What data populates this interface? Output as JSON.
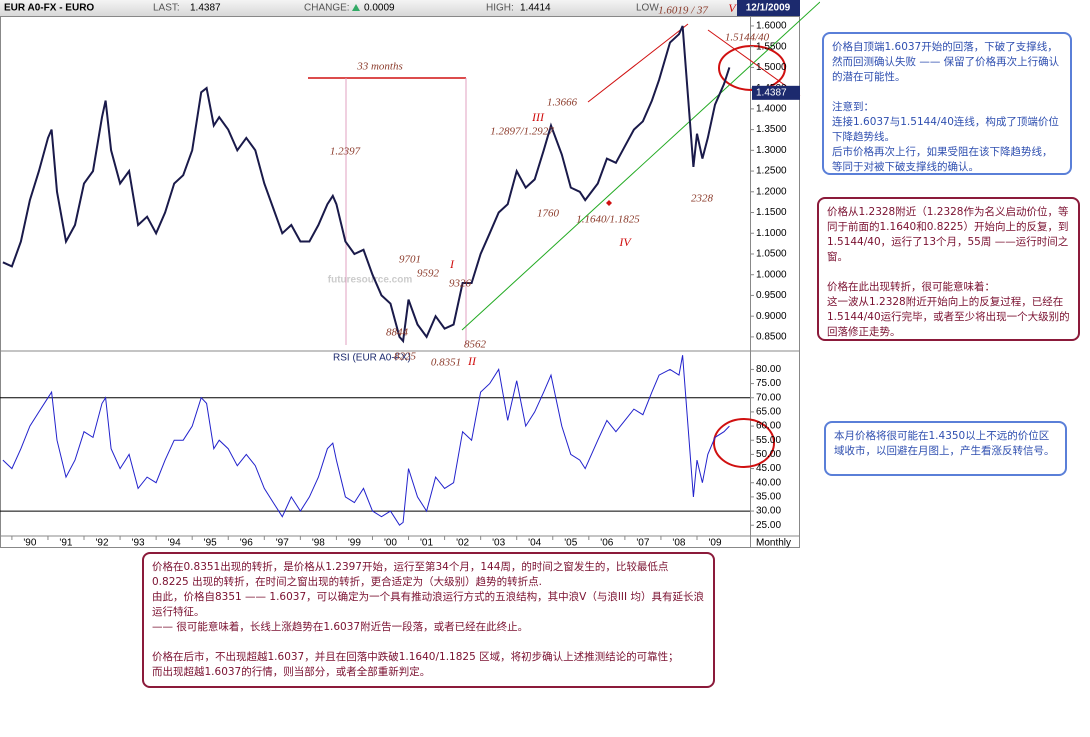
{
  "header": {
    "symbol": "EUR A0-FX - EURO",
    "last_label": "LAST:",
    "last": "1.4387",
    "change_label": "CHANGE:",
    "change": "0.0009",
    "high_label": "HIGH:",
    "high": "1.4414",
    "low_label": "LOW",
    "date": "12/1/2009"
  },
  "chart_data": [
    {
      "type": "line",
      "color": "#1a1a4a",
      "watermark": "futuresource.com",
      "x_label": "Monthly",
      "x": [
        1989.75,
        1990.0,
        1990.25,
        1990.5,
        1990.75,
        1991.0,
        1991.1,
        1991.25,
        1991.5,
        1991.75,
        1992.0,
        1992.25,
        1992.5,
        1992.6,
        1992.75,
        1993.0,
        1993.25,
        1993.5,
        1993.75,
        1994.0,
        1994.25,
        1994.5,
        1994.75,
        1995.0,
        1995.25,
        1995.4,
        1995.6,
        1995.75,
        1996.0,
        1996.25,
        1996.5,
        1996.75,
        1997.0,
        1997.25,
        1997.5,
        1997.75,
        1998.0,
        1998.25,
        1998.5,
        1998.75,
        1998.9,
        1999.0,
        1999.25,
        1999.5,
        1999.75,
        2000.0,
        2000.25,
        2000.5,
        2000.75,
        2000.85,
        2001.0,
        2001.25,
        2001.5,
        2001.75,
        2002.0,
        2002.25,
        2002.5,
        2002.75,
        2003.0,
        2003.25,
        2003.5,
        2003.75,
        2004.0,
        2004.25,
        2004.5,
        2004.75,
        2004.95,
        2005.25,
        2005.5,
        2005.75,
        2005.9,
        2006.25,
        2006.5,
        2006.75,
        2007.0,
        2007.25,
        2007.5,
        2007.75,
        2007.95,
        2008.25,
        2008.5,
        2008.6,
        2008.75,
        2008.9,
        2009.0,
        2009.15,
        2009.3,
        2009.5,
        2009.75,
        2009.9
      ],
      "values": [
        1.03,
        1.02,
        1.08,
        1.18,
        1.25,
        1.33,
        1.35,
        1.2,
        1.08,
        1.12,
        1.22,
        1.25,
        1.38,
        1.42,
        1.3,
        1.22,
        1.25,
        1.12,
        1.14,
        1.1,
        1.15,
        1.22,
        1.24,
        1.3,
        1.44,
        1.45,
        1.36,
        1.38,
        1.35,
        1.3,
        1.33,
        1.3,
        1.22,
        1.16,
        1.1,
        1.12,
        1.08,
        1.08,
        1.12,
        1.17,
        1.19,
        1.17,
        1.08,
        1.05,
        1.06,
        1.0,
        0.95,
        0.93,
        0.85,
        0.84,
        0.94,
        0.88,
        0.85,
        0.9,
        0.87,
        0.88,
        0.98,
        0.98,
        1.05,
        1.1,
        1.15,
        1.17,
        1.25,
        1.21,
        1.23,
        1.3,
        1.36,
        1.29,
        1.21,
        1.2,
        1.18,
        1.22,
        1.28,
        1.27,
        1.31,
        1.35,
        1.37,
        1.42,
        1.47,
        1.56,
        1.58,
        1.6,
        1.43,
        1.26,
        1.34,
        1.28,
        1.33,
        1.41,
        1.46,
        1.5
      ],
      "last_marker": 1.4387,
      "xlim": [
        1989.67,
        2010.47
      ],
      "ylim": [
        0.816,
        1.624
      ],
      "xticks": [
        {
          "value": 1990,
          "label": "'90"
        },
        {
          "value": 1991,
          "label": "'91"
        },
        {
          "value": 1992,
          "label": "'92"
        },
        {
          "value": 1993,
          "label": "'93"
        },
        {
          "value": 1994,
          "label": "'94"
        },
        {
          "value": 1995,
          "label": "'95"
        },
        {
          "value": 1996,
          "label": "'96"
        },
        {
          "value": 1997,
          "label": "'97"
        },
        {
          "value": 1998,
          "label": "'98"
        },
        {
          "value": 1999,
          "label": "'99"
        },
        {
          "value": 2000,
          "label": "'00"
        },
        {
          "value": 2001,
          "label": "'01"
        },
        {
          "value": 2002,
          "label": "'02"
        },
        {
          "value": 2003,
          "label": "'03"
        },
        {
          "value": 2004,
          "label": "'04"
        },
        {
          "value": 2005,
          "label": "'05"
        },
        {
          "value": 2006,
          "label": "'06"
        },
        {
          "value": 2007,
          "label": "'07"
        },
        {
          "value": 2008,
          "label": "'08"
        },
        {
          "value": 2009,
          "label": "'09"
        }
      ],
      "yticks": [
        {
          "value": 0.85,
          "label": "0.8500"
        },
        {
          "value": 0.9,
          "label": "0.9000"
        },
        {
          "value": 0.95,
          "label": "0.9500"
        },
        {
          "value": 1.0,
          "label": "1.0000"
        },
        {
          "value": 1.05,
          "label": "1.0500"
        },
        {
          "value": 1.1,
          "label": "1.1000"
        },
        {
          "value": 1.15,
          "label": "1.1500"
        },
        {
          "value": 1.2,
          "label": "1.2000"
        },
        {
          "value": 1.25,
          "label": "1.2500"
        },
        {
          "value": 1.3,
          "label": "1.3000"
        },
        {
          "value": 1.35,
          "label": "1.3500"
        },
        {
          "value": 1.4,
          "label": "1.4000"
        },
        {
          "value": 1.45,
          "label": "1.4500"
        },
        {
          "value": 1.5,
          "label": "1.5000"
        },
        {
          "value": 1.55,
          "label": "1.5500"
        },
        {
          "value": 1.6,
          "label": "1.6000"
        }
      ],
      "annotations": [
        "33 months",
        "1.2397",
        "9701",
        "9592",
        "9326",
        "I",
        "8844",
        "8562",
        "0.8351",
        "8225",
        "II",
        "III",
        "1.3666",
        "1.2897/1.2927",
        "1760",
        "1.1640/1.1825",
        "IV",
        "2328",
        "1.6019 / 37",
        "V",
        "1.5144/40"
      ]
    },
    {
      "type": "line",
      "title": "RSI (EUR A0-FX)",
      "color": "#2222cc",
      "x": [
        1989.75,
        1990.0,
        1990.25,
        1990.5,
        1990.75,
        1991.0,
        1991.1,
        1991.25,
        1991.5,
        1991.75,
        1992.0,
        1992.25,
        1992.5,
        1992.6,
        1992.75,
        1993.0,
        1993.25,
        1993.5,
        1993.75,
        1994.0,
        1994.25,
        1994.5,
        1994.75,
        1995.0,
        1995.25,
        1995.4,
        1995.6,
        1995.75,
        1996.0,
        1996.25,
        1996.5,
        1996.75,
        1997.0,
        1997.25,
        1997.5,
        1997.75,
        1998.0,
        1998.25,
        1998.5,
        1998.75,
        1998.9,
        1999.0,
        1999.25,
        1999.5,
        1999.75,
        2000.0,
        2000.25,
        2000.5,
        2000.75,
        2000.85,
        2001.0,
        2001.25,
        2001.5,
        2001.75,
        2002.0,
        2002.25,
        2002.5,
        2002.75,
        2003.0,
        2003.25,
        2003.5,
        2003.75,
        2004.0,
        2004.25,
        2004.5,
        2004.75,
        2004.95,
        2005.25,
        2005.5,
        2005.75,
        2005.9,
        2006.25,
        2006.5,
        2006.75,
        2007.0,
        2007.25,
        2007.5,
        2007.75,
        2007.95,
        2008.25,
        2008.5,
        2008.6,
        2008.75,
        2008.9,
        2009.0,
        2009.15,
        2009.3,
        2009.5,
        2009.75,
        2009.9
      ],
      "values": [
        48,
        45,
        52,
        60,
        65,
        70,
        72,
        55,
        42,
        48,
        58,
        56,
        68,
        70,
        52,
        45,
        50,
        38,
        42,
        40,
        48,
        55,
        55,
        60,
        70,
        68,
        52,
        55,
        52,
        46,
        50,
        46,
        38,
        33,
        28,
        35,
        30,
        35,
        42,
        52,
        54,
        48,
        35,
        33,
        38,
        30,
        28,
        30,
        25,
        26,
        45,
        35,
        30,
        42,
        38,
        40,
        58,
        55,
        72,
        75,
        80,
        62,
        76,
        60,
        65,
        72,
        78,
        60,
        50,
        48,
        45,
        55,
        62,
        58,
        62,
        66,
        64,
        72,
        78,
        80,
        78,
        85,
        60,
        35,
        48,
        40,
        50,
        56,
        58,
        60
      ],
      "xlim": [
        1989.67,
        2010.47
      ],
      "ylim": [
        21.2,
        86.5
      ],
      "yticks": [
        {
          "value": 25,
          "label": "25.00"
        },
        {
          "value": 30,
          "label": "30.00"
        },
        {
          "value": 35,
          "label": "35.00"
        },
        {
          "value": 40,
          "label": "40.00"
        },
        {
          "value": 45,
          "label": "45.00"
        },
        {
          "value": 50,
          "label": "50.00"
        },
        {
          "value": 55,
          "label": "55.00"
        },
        {
          "value": 60,
          "label": "60.00"
        },
        {
          "value": 65,
          "label": "65.00"
        },
        {
          "value": 70,
          "label": "70.00"
        },
        {
          "value": 75,
          "label": "75.00"
        },
        {
          "value": 80,
          "label": "80.00"
        }
      ],
      "reference_lines": [
        70,
        30
      ]
    }
  ],
  "notes": [
    {
      "style": "blue",
      "paragraphs": [
        [
          "价格自顶端1.6037开始的回落，下破了支撑线，然而回测确认失败 —— 保留了价格再次上行确认的潜在可能性。"
        ],
        [
          "注意到：",
          "连接1.6037与1.5144/40连线，构成了顶端价位下降趋势线。",
          "后市价格再次上行，如果受阻在该下降趋势线，等同于对被下破支撑线的确认。"
        ]
      ]
    },
    {
      "style": "maroon",
      "paragraphs": [
        [
          "价格从1.2328附近（1.2328作为名义启动价位，等同于前面的1.1640和0.8225）开始向上的反复，到1.5144/40，运行了13个月，55周 ——运行时间之窗。"
        ],
        [
          "价格在此出现转折，很可能意味着：",
          "这一波从1.2328附近开始向上的反复过程，已经在1.5144/40运行完毕，或者至少将出现一个大级别的回落修正走势。"
        ]
      ]
    },
    {
      "style": "blue",
      "paragraphs": [
        [
          "本月价格将很可能在1.4350以上不远的价位区域收市，以回避在月图上，产生看涨反转信号。"
        ]
      ]
    },
    {
      "style": "maroon",
      "paragraphs": [
        [
          "价格在0.8351出现的转折，是价格从1.2397开始，运行至第34个月，144周，的时间之窗发生的，比较最低点0.8225 出现的转折，在时间之窗出现的转折，更合适定为（大级别）趋势的转折点.",
          "由此，价格自8351 —— 1.6037，可以确定为一个具有推动浪运行方式的五浪结构，其中浪V（与浪III 均）具有延长浪运行特征。",
          "—— 很可能意味着，长线上涨趋势在1.6037附近告一段落，或者已经在此终止。"
        ],
        [
          "价格在后市，不出现超越1.6037，并且在回落中跌破1.1640/1.1825 区域，将初步确认上述推测结论的可靠性；",
          "而出现超越1.6037的行情，则当部分，或者全部重新判定。"
        ]
      ]
    }
  ]
}
